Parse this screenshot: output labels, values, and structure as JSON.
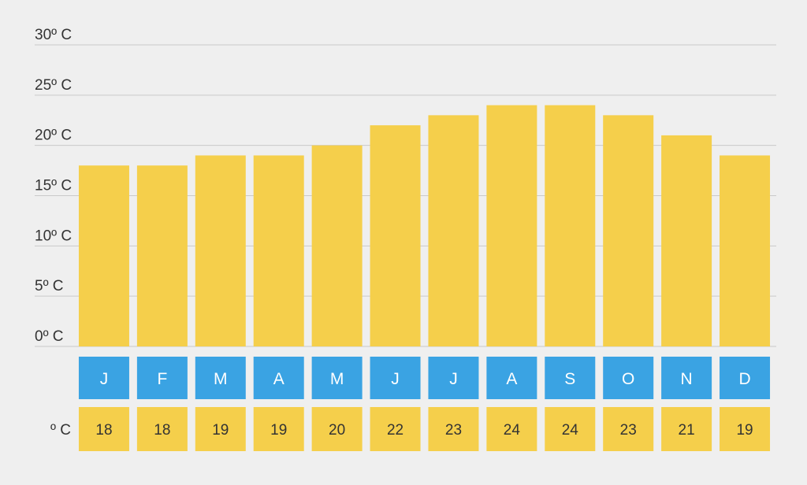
{
  "chart_data": {
    "type": "bar",
    "categories": [
      "J",
      "F",
      "M",
      "A",
      "M",
      "J",
      "J",
      "A",
      "S",
      "O",
      "N",
      "D"
    ],
    "values": [
      18,
      18,
      19,
      19,
      20,
      22,
      23,
      24,
      24,
      23,
      21,
      19
    ],
    "y_ticks": [
      {
        "value": 0,
        "label": "0º C"
      },
      {
        "value": 5,
        "label": "5º C"
      },
      {
        "value": 10,
        "label": "10º C"
      },
      {
        "value": 15,
        "label": "15º C"
      },
      {
        "value": 20,
        "label": "20º C"
      },
      {
        "value": 25,
        "label": "25º C"
      },
      {
        "value": 30,
        "label": "30º C"
      }
    ],
    "ylim": [
      0,
      30
    ],
    "grid": true,
    "value_row_label": "º C",
    "colors": {
      "bar": "#f5cf4b",
      "month_box": "#3aa3e3",
      "month_text": "#ffffff",
      "value_box": "#f5cf4b",
      "value_text": "#333333",
      "grid": "#c9c9c9",
      "axis_text": "#333333",
      "background": "#efefef"
    }
  }
}
